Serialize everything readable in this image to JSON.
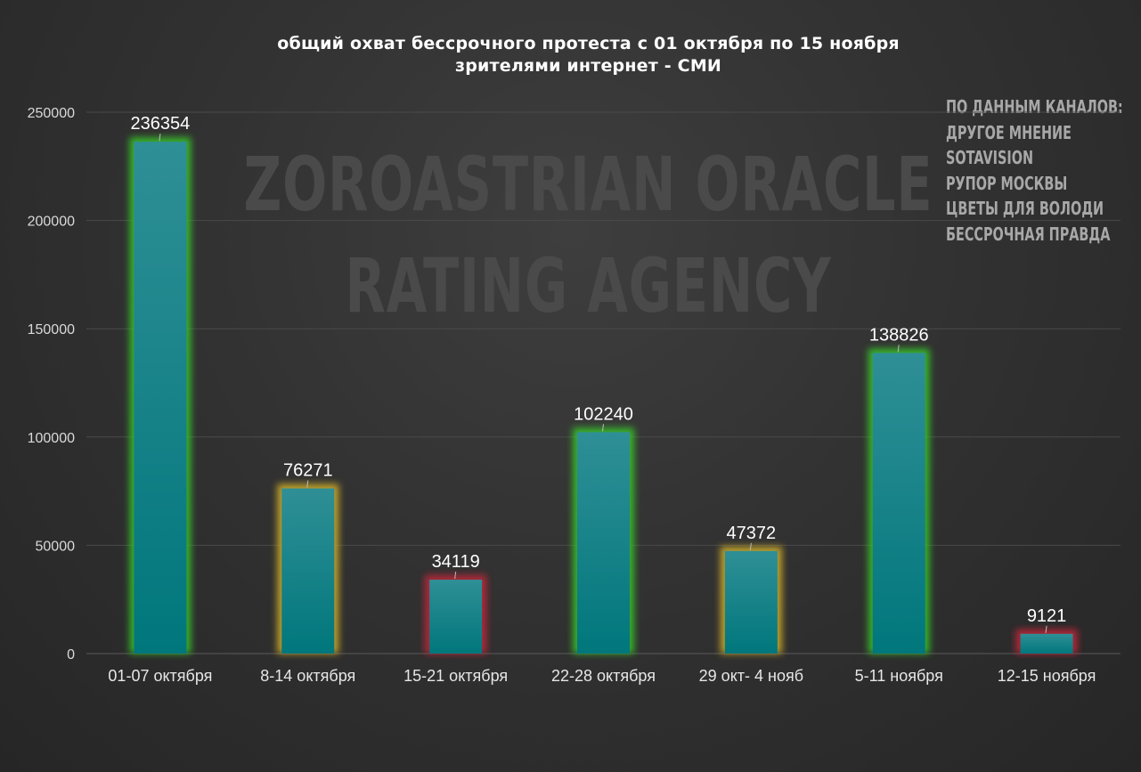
{
  "chart_data": {
    "type": "bar",
    "title": "общий охват бессрочного протеста с 01 октября по 15 ноября",
    "subtitle": "зрителями интернет - СМИ",
    "categories": [
      "01-07 октября",
      "8-14 октября",
      "15-21 октября",
      "22-28 октября",
      "29 окт- 4 нояб",
      "5-11 ноября",
      "12-15 ноября"
    ],
    "values": [
      236354,
      76271,
      34119,
      102240,
      47372,
      138826,
      9121
    ],
    "data_labels": [
      "236354",
      "76271",
      "34119",
      "102240",
      "47372",
      "138826",
      "9121"
    ],
    "glow_colors": [
      "#39c82a",
      "#d6b42a",
      "#c8283a",
      "#39c82a",
      "#d6b42a",
      "#39c82a",
      "#c8283a"
    ],
    "bar_color_top": "#2f8f96",
    "bar_color_bottom": "#00777c",
    "ylim": [
      0,
      250000
    ],
    "yticks": [
      "0",
      "50000",
      "100000",
      "150000",
      "200000",
      "250000"
    ],
    "grid": true,
    "xlabel": "",
    "ylabel": ""
  },
  "watermark": {
    "line1": "ZOROASTRIAN ORACLE",
    "line2": "RATING AGENCY"
  },
  "sources": {
    "header": "ПО ДАННЫМ КАНАЛОВ:",
    "items": [
      "ДРУГОЕ МНЕНИЕ",
      "SOTAVISION",
      "РУПОР МОСКВЫ",
      "ЦВЕТЫ ДЛЯ ВОЛОДИ",
      "БЕССРОЧНАЯ ПРАВДА"
    ]
  }
}
